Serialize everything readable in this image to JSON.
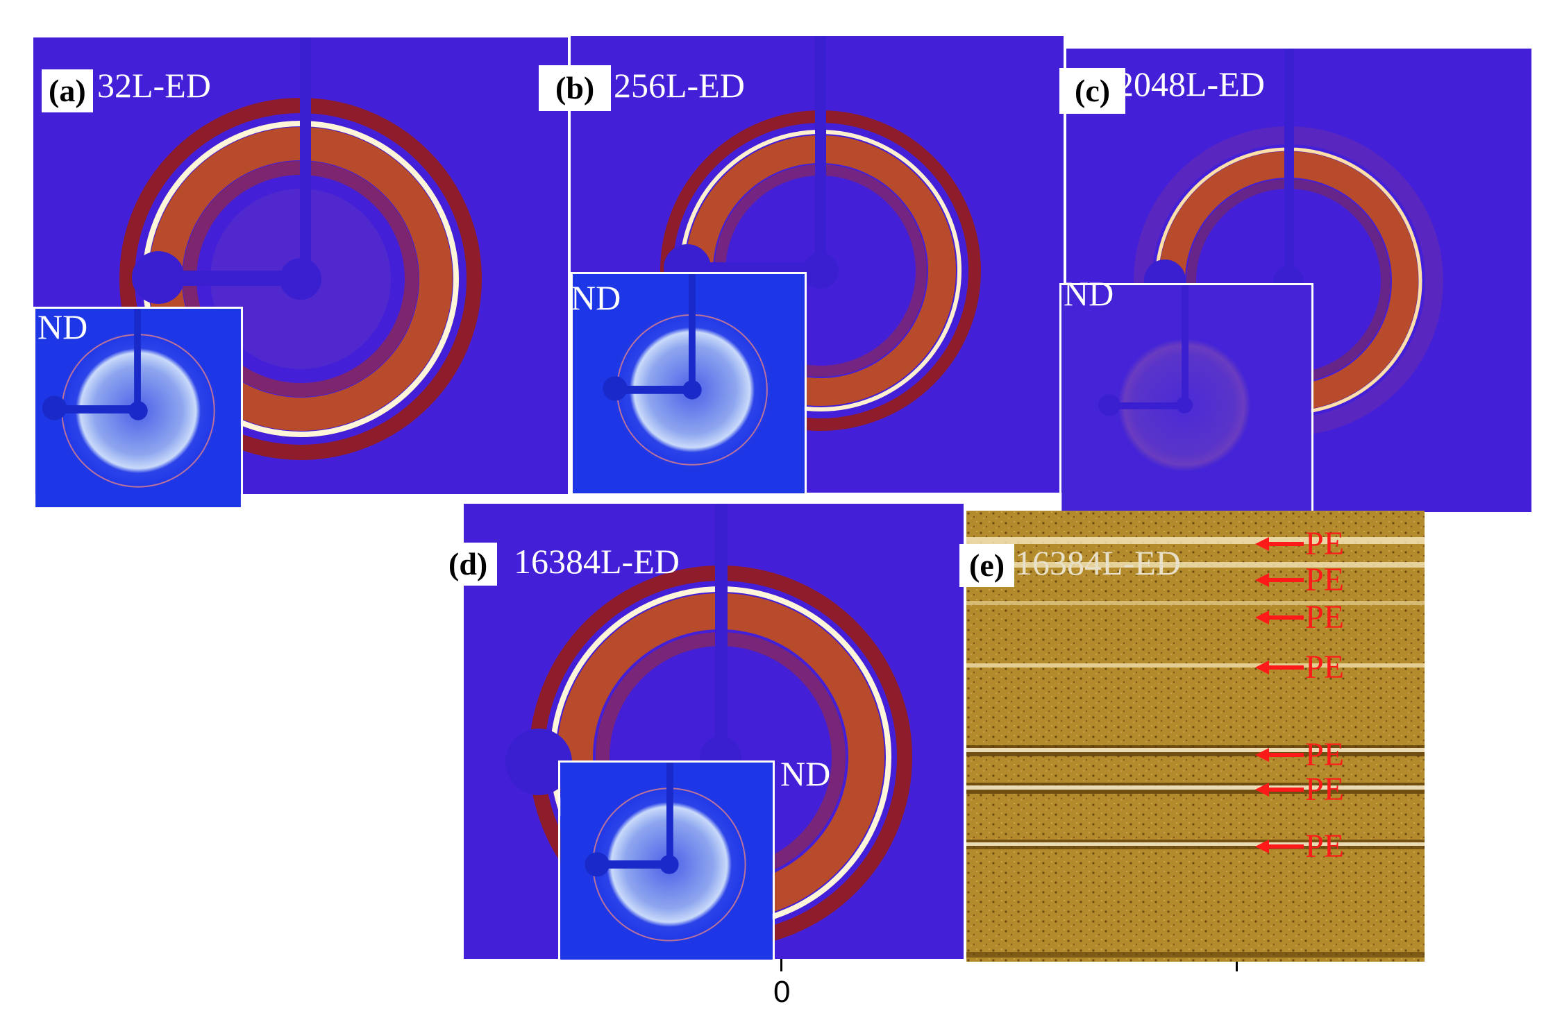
{
  "panels": {
    "a": {
      "letter": "(a)",
      "label": "32L-ED",
      "inset_label": "ND"
    },
    "b": {
      "letter": "(b)",
      "label": "256L-ED",
      "inset_label": "ND"
    },
    "c": {
      "letter": "(c)",
      "label": "2048L-ED",
      "inset_label": "ND"
    },
    "d": {
      "letter": "(d)",
      "label": "16384L-ED",
      "inset_label": "ND"
    },
    "e": {
      "letter": "(e)",
      "label": "16384L-ED",
      "layer_labels": [
        "PE",
        "PE",
        "PE",
        "PE",
        "PE",
        "PE",
        "PE"
      ]
    }
  },
  "axis": {
    "zero_label": "0"
  },
  "colors": {
    "saxs_background": "#4a1fd8",
    "ring_dark_red": "#8e1c2b",
    "ring_orange": "#c4501a",
    "ring_highlight": "#fff6d9",
    "waxs_background": "#1d36e6",
    "waxs_ring": "#a9c4f2",
    "afm_background": "#b28a2b",
    "pe_arrow": "#ff1a1a"
  }
}
